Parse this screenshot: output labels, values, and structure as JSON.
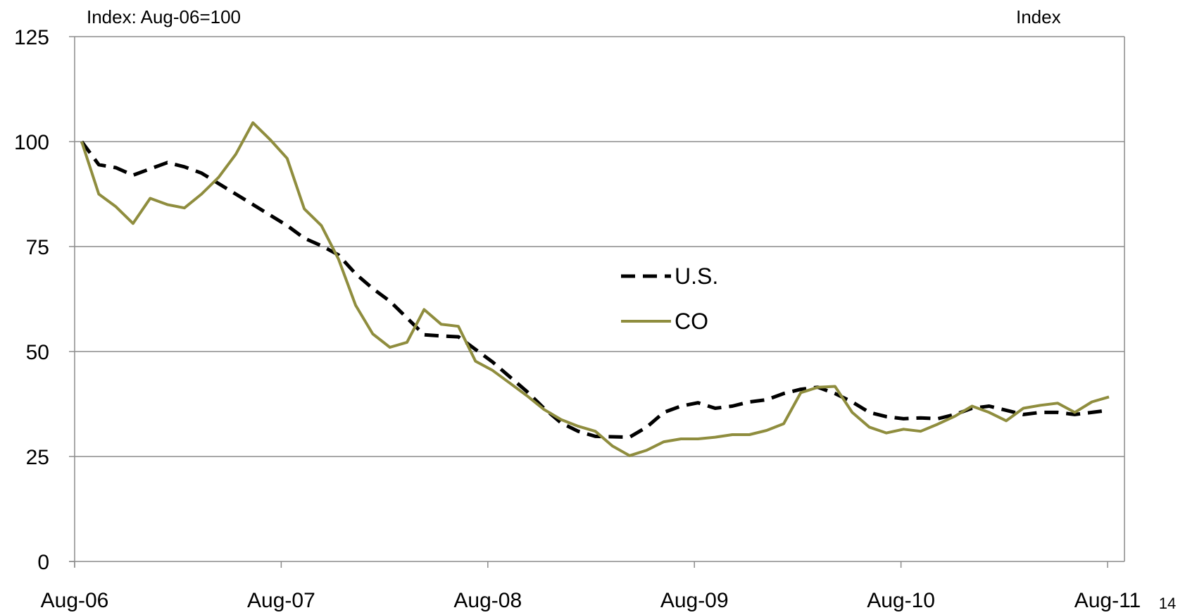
{
  "page": {
    "number": "14"
  },
  "chart_data": {
    "type": "line",
    "title": "",
    "left_axis_caption": "Index: Aug-06=100",
    "right_axis_caption": "Index",
    "xlabel": "",
    "ylabel": "",
    "ylim": [
      0,
      125
    ],
    "y_ticks": [
      0,
      25,
      50,
      75,
      100,
      125
    ],
    "x_tick_labels": [
      "Aug-06",
      "Aug-07",
      "Aug-08",
      "Aug-09",
      "Aug-10",
      "Aug-11"
    ],
    "x_tick_index": [
      0,
      12,
      24,
      36,
      48,
      60
    ],
    "grid": true,
    "legend_position": "center",
    "series": [
      {
        "name": "U.S.",
        "color": "#000000",
        "style": "dashed",
        "values": [
          100,
          94.5,
          93.8,
          92.0,
          93.5,
          95.0,
          94.0,
          92.5,
          90.0,
          87.5,
          85.0,
          82.5,
          80.0,
          77.0,
          75.2,
          73.0,
          68.5,
          65.0,
          62.0,
          58.0,
          54.0,
          53.7,
          53.5,
          50.5,
          47.5,
          44.0,
          40.5,
          36.5,
          33.0,
          31.0,
          29.8,
          29.7,
          29.6,
          32.0,
          35.5,
          37.0,
          37.8,
          36.5,
          37.0,
          38.0,
          38.5,
          40.0,
          41.0,
          41.5,
          40.0,
          38.0,
          35.5,
          34.5,
          34.0,
          34.2,
          34.0,
          35.0,
          36.5,
          37.0,
          36.0,
          35.0,
          35.5,
          35.5,
          35.0,
          35.5,
          36.0
        ]
      },
      {
        "name": "CO",
        "color": "#8f8d3e",
        "style": "solid",
        "values": [
          100,
          87.5,
          84.5,
          80.5,
          86.5,
          85.0,
          84.2,
          87.5,
          91.5,
          97.0,
          104.5,
          100.5,
          96.0,
          84.0,
          80.0,
          72.0,
          61.0,
          54.2,
          51.0,
          52.2,
          60.0,
          56.5,
          56.0,
          47.7,
          45.5,
          42.5,
          39.5,
          36.2,
          33.8,
          32.2,
          31.0,
          27.5,
          25.2,
          26.5,
          28.5,
          29.2,
          29.2,
          29.6,
          30.2,
          30.2,
          31.2,
          32.8,
          40.2,
          41.5,
          41.7,
          35.5,
          32.0,
          30.6,
          31.5,
          31.0,
          32.7,
          34.6,
          37.0,
          35.5,
          33.5,
          36.5,
          37.2,
          37.7,
          35.5,
          38.0,
          39.2
        ]
      }
    ]
  }
}
